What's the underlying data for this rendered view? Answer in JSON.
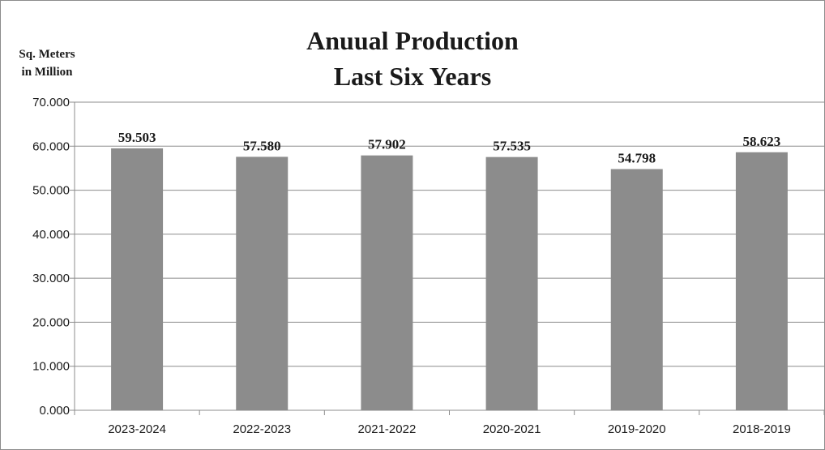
{
  "chart_data": {
    "type": "bar",
    "title_lines": [
      "Anuual Production",
      "Last Six Years"
    ],
    "ylabel_lines": [
      "Sq. Meters",
      "in Million"
    ],
    "xlabel": "",
    "categories": [
      "2023-2024",
      "2022-2023",
      "2021-2022",
      "2020-2021",
      "2019-2020",
      "2018-2019"
    ],
    "values": [
      59.503,
      57.58,
      57.902,
      57.535,
      54.798,
      58.623
    ],
    "data_labels": [
      "59.503",
      "57.580",
      "57.902",
      "57.535",
      "54.798",
      "58.623"
    ],
    "yticks": [
      0,
      10,
      20,
      30,
      40,
      50,
      60,
      70
    ],
    "ytick_labels": [
      "0.000",
      "10.000",
      "20.000",
      "30.000",
      "40.000",
      "50.000",
      "60.000",
      "70.000"
    ],
    "ylim": [
      0,
      70
    ],
    "grid": true,
    "legend": "none",
    "bar_color": "#8c8c8c"
  }
}
